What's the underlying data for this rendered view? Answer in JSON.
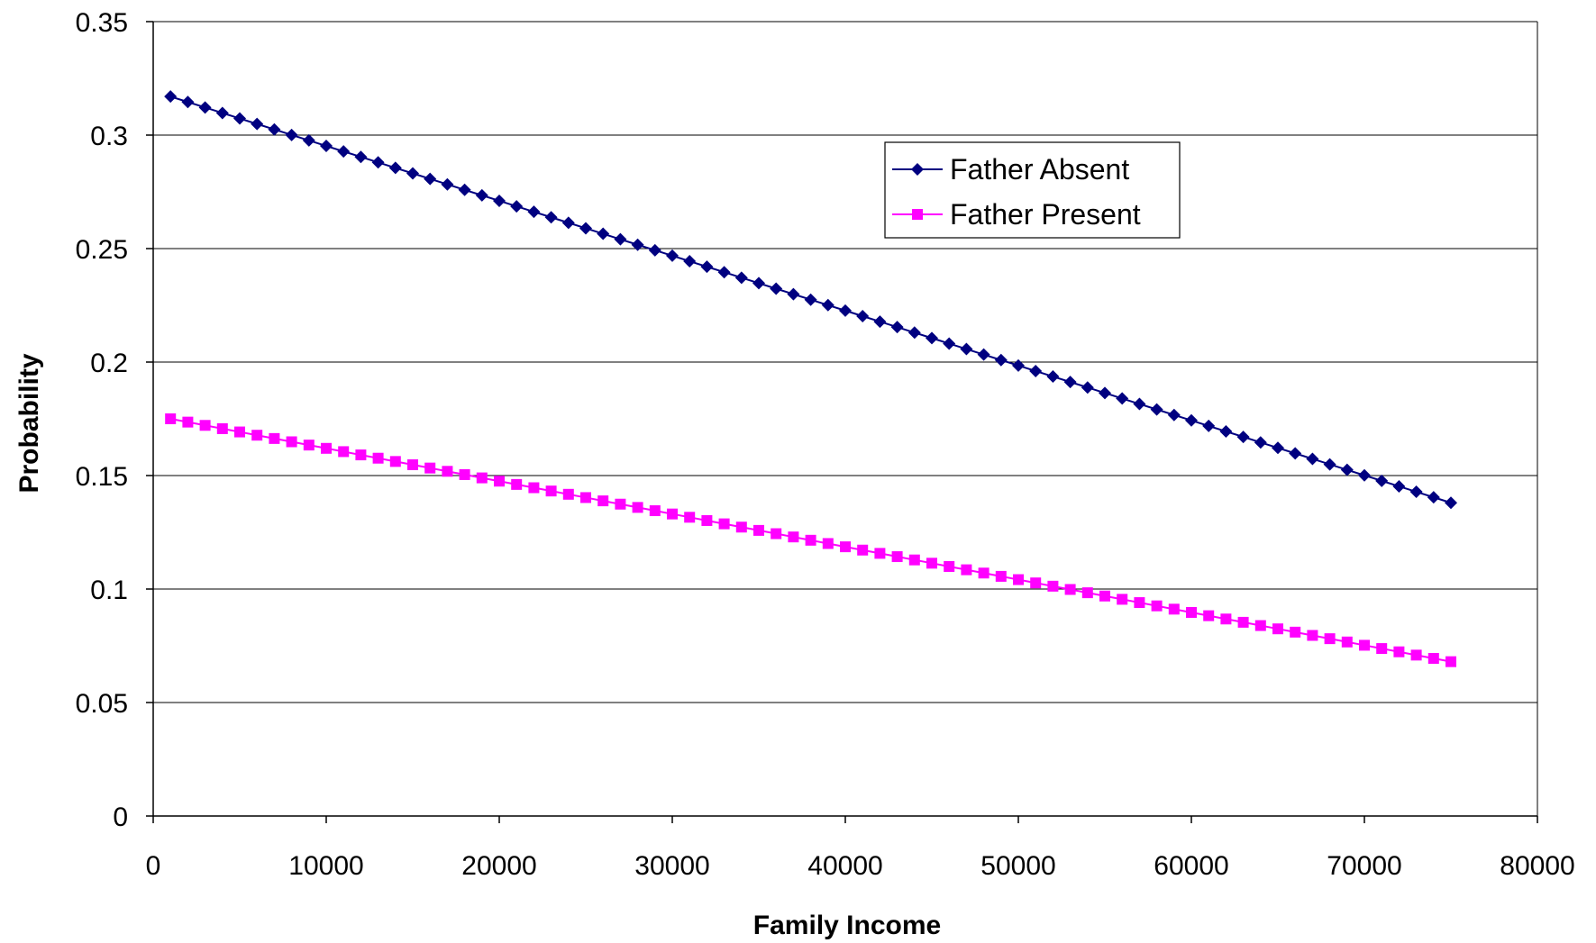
{
  "chart_data": {
    "type": "line",
    "title": "",
    "xlabel": "Family Income",
    "ylabel": "Probability",
    "xlim": [
      0,
      80000
    ],
    "ylim": [
      0,
      0.35
    ],
    "x_ticks": [
      0,
      10000,
      20000,
      30000,
      40000,
      50000,
      60000,
      70000,
      80000
    ],
    "y_ticks": [
      0,
      0.05,
      0.1,
      0.15,
      0.2,
      0.25,
      0.3,
      0.35
    ],
    "x_tick_labels": [
      "0",
      "10000",
      "20000",
      "30000",
      "40000",
      "50000",
      "60000",
      "70000",
      "80000"
    ],
    "y_tick_labels": [
      "0",
      "0.05",
      "0.1",
      "0.15",
      "0.2",
      "0.25",
      "0.3",
      "0.35"
    ],
    "grid": "horizontal",
    "legend_position": "top-right",
    "series": [
      {
        "name": "Father Absent",
        "color": "#000080",
        "marker": "diamond",
        "x_start": 1000,
        "x_end": 75000,
        "x_step": 1000,
        "y_start": 0.317,
        "y_end": 0.138
      },
      {
        "name": "Father Present",
        "color": "#FF00FF",
        "marker": "square",
        "x_start": 1000,
        "x_end": 75000,
        "x_step": 1000,
        "y_start": 0.175,
        "y_end": 0.068
      }
    ]
  }
}
